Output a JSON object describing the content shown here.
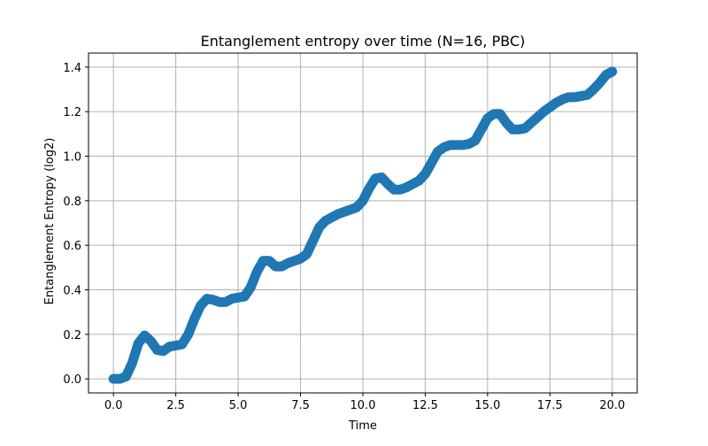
{
  "chart_data": {
    "type": "line",
    "title": "Entanglement entropy over time (N=16, PBC)",
    "x_label": "Time",
    "y_label": "Entanglement Entropy (log2)",
    "x": [
      0,
      0.25,
      0.5,
      0.75,
      1,
      1.25,
      1.5,
      1.75,
      2,
      2.25,
      2.5,
      2.75,
      3,
      3.25,
      3.5,
      3.75,
      4,
      4.25,
      4.5,
      4.75,
      5,
      5.25,
      5.5,
      5.75,
      6,
      6.25,
      6.5,
      6.75,
      7,
      7.25,
      7.5,
      7.75,
      8,
      8.25,
      8.5,
      8.75,
      9,
      9.25,
      9.5,
      9.75,
      10,
      10.25,
      10.5,
      10.75,
      11,
      11.25,
      11.5,
      11.75,
      12,
      12.25,
      12.5,
      12.75,
      13,
      13.25,
      13.5,
      13.75,
      14,
      14.25,
      14.5,
      14.75,
      15,
      15.25,
      15.5,
      15.75,
      16,
      16.25,
      16.5,
      16.75,
      17,
      17.25,
      17.5,
      17.75,
      18,
      18.25,
      18.5,
      18.75,
      19,
      19.25,
      19.5,
      19.75,
      20
    ],
    "values": [
      0,
      0,
      0.01,
      0.07,
      0.16,
      0.195,
      0.17,
      0.13,
      0.125,
      0.145,
      0.15,
      0.155,
      0.2,
      0.27,
      0.33,
      0.36,
      0.355,
      0.345,
      0.345,
      0.36,
      0.365,
      0.37,
      0.41,
      0.48,
      0.53,
      0.53,
      0.505,
      0.505,
      0.52,
      0.53,
      0.54,
      0.56,
      0.62,
      0.68,
      0.71,
      0.725,
      0.74,
      0.75,
      0.76,
      0.77,
      0.8,
      0.855,
      0.9,
      0.905,
      0.875,
      0.85,
      0.85,
      0.86,
      0.875,
      0.89,
      0.92,
      0.97,
      1.02,
      1.04,
      1.05,
      1.05,
      1.05,
      1.055,
      1.07,
      1.12,
      1.17,
      1.19,
      1.19,
      1.15,
      1.12,
      1.12,
      1.125,
      1.15,
      1.175,
      1.2,
      1.22,
      1.24,
      1.255,
      1.265,
      1.265,
      1.27,
      1.275,
      1.3,
      1.33,
      1.365,
      1.38
    ],
    "color": "#1f77b4",
    "xlim": [
      -1,
      21
    ],
    "ylim": [
      -0.063,
      1.463
    ],
    "xticks": [
      {
        "value": 0,
        "label": "0.0"
      },
      2.5,
      {
        "value": 5,
        "label": "5.0"
      },
      7.5,
      {
        "value": 10,
        "label": "10.0"
      },
      12.5,
      {
        "value": 15,
        "label": "15.0"
      },
      17.5,
      {
        "value": 20,
        "label": "20.0"
      }
    ],
    "yticks": [
      {
        "value": 0,
        "label": "0.0"
      },
      0.2,
      0.4,
      0.6,
      0.8,
      {
        "value": 1,
        "label": "1.0"
      },
      1.2,
      1.4
    ],
    "grid": true
  }
}
